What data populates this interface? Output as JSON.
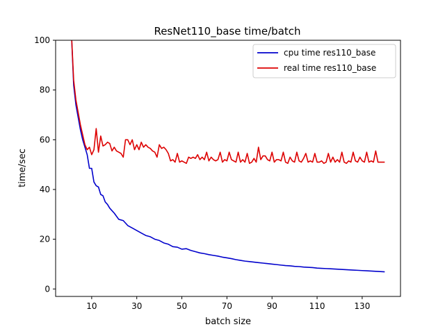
{
  "chart_data": {
    "type": "line",
    "title": "ResNet110_base time/batch",
    "xlabel": "batch size",
    "ylabel": "time/sec",
    "xlim": [
      -6,
      147
    ],
    "ylim": [
      -3,
      100
    ],
    "xticks": [
      10,
      30,
      50,
      70,
      90,
      110,
      130
    ],
    "yticks": [
      0,
      20,
      40,
      60,
      80,
      100
    ],
    "grid": false,
    "legend_position": "top-right",
    "series": [
      {
        "name": "cpu time res110_base",
        "color": "#0000cc",
        "x": [
          1,
          2,
          3,
          4,
          5,
          6,
          7,
          8,
          9,
          10,
          11,
          12,
          13,
          14,
          15,
          16,
          17,
          18,
          19,
          20,
          22,
          24,
          26,
          28,
          30,
          32,
          34,
          36,
          38,
          40,
          42,
          44,
          46,
          48,
          50,
          52,
          54,
          56,
          58,
          60,
          62,
          64,
          66,
          68,
          70,
          72,
          74,
          76,
          78,
          80,
          82,
          84,
          86,
          88,
          90,
          92,
          94,
          96,
          98,
          100,
          102,
          104,
          106,
          108,
          110,
          112,
          114,
          116,
          118,
          120,
          122,
          124,
          126,
          128,
          130,
          132,
          134,
          136,
          138,
          140
        ],
        "y": [
          103,
          82,
          74,
          69,
          64,
          60,
          57,
          54,
          48.5,
          48.5,
          43,
          41.5,
          41,
          38,
          37.5,
          35,
          34,
          32.5,
          31.5,
          30.5,
          28,
          27.5,
          25.5,
          24.5,
          23.5,
          22.5,
          21.5,
          21,
          20,
          19.5,
          18.5,
          18,
          17,
          16.8,
          16,
          16.2,
          15.5,
          15,
          14.5,
          14.2,
          13.8,
          13.5,
          13.2,
          12.8,
          12.5,
          12.2,
          11.8,
          11.5,
          11.2,
          11,
          10.8,
          10.6,
          10.4,
          10.2,
          10,
          9.8,
          9.6,
          9.4,
          9.3,
          9.1,
          9,
          8.8,
          8.7,
          8.6,
          8.4,
          8.3,
          8.2,
          8.1,
          8,
          7.9,
          7.8,
          7.7,
          7.6,
          7.5,
          7.4,
          7.3,
          7.2,
          7.1,
          7,
          6.9
        ]
      },
      {
        "name": "real time res110_base",
        "color": "#dd0000",
        "x": [
          1,
          2,
          3,
          4,
          5,
          6,
          7,
          8,
          9,
          10,
          11,
          12,
          13,
          14,
          15,
          16,
          17,
          18,
          19,
          20,
          21,
          22,
          23,
          24,
          25,
          26,
          27,
          28,
          29,
          30,
          31,
          32,
          33,
          34,
          35,
          36,
          37,
          38,
          39,
          40,
          41,
          42,
          43,
          44,
          45,
          46,
          47,
          48,
          49,
          50,
          51,
          52,
          53,
          54,
          55,
          56,
          57,
          58,
          59,
          60,
          61,
          62,
          63,
          64,
          65,
          66,
          67,
          68,
          69,
          70,
          71,
          72,
          73,
          74,
          75,
          76,
          77,
          78,
          79,
          80,
          81,
          82,
          83,
          84,
          85,
          86,
          87,
          88,
          89,
          90,
          91,
          92,
          93,
          94,
          95,
          96,
          97,
          98,
          99,
          100,
          101,
          102,
          103,
          104,
          105,
          106,
          107,
          108,
          109,
          110,
          111,
          112,
          113,
          114,
          115,
          116,
          117,
          118,
          119,
          120,
          121,
          122,
          123,
          124,
          125,
          126,
          127,
          128,
          129,
          130,
          131,
          132,
          133,
          134,
          135,
          136,
          137,
          138,
          139,
          140
        ],
        "y": [
          103,
          84,
          76,
          71,
          66,
          62,
          58,
          56,
          57,
          54,
          56,
          64.5,
          55,
          61.5,
          57.5,
          58,
          59,
          58.5,
          55.5,
          57,
          55.5,
          55,
          54.5,
          53,
          60,
          60,
          58,
          60,
          56,
          58,
          56,
          59,
          57,
          58,
          57,
          56.5,
          55.5,
          55,
          53,
          58,
          56.5,
          57,
          56,
          54.5,
          51.5,
          52,
          51,
          54.5,
          51,
          51.5,
          51,
          50.5,
          53,
          52.5,
          53,
          52.5,
          54,
          52,
          53,
          52,
          55,
          51.5,
          53,
          52,
          51.5,
          52,
          55,
          51,
          52,
          51.5,
          55,
          52,
          51.5,
          51,
          55,
          51,
          52,
          51,
          54.5,
          50.5,
          51,
          52.5,
          51,
          57,
          52,
          53.5,
          53.5,
          52,
          51.5,
          55,
          51,
          52,
          52,
          51.5,
          55,
          51,
          50.5,
          53,
          51.5,
          51,
          55,
          51.5,
          51,
          52.5,
          54.5,
          51,
          51.5,
          51,
          54.5,
          51,
          51,
          51.5,
          50.5,
          51,
          54.5,
          51,
          53,
          51,
          52,
          51,
          55,
          51,
          50.5,
          51.5,
          51,
          55,
          51.5,
          51,
          53,
          51.5,
          51,
          55,
          51,
          51.5,
          51,
          55.5,
          51,
          51,
          51,
          51
        ]
      }
    ]
  }
}
